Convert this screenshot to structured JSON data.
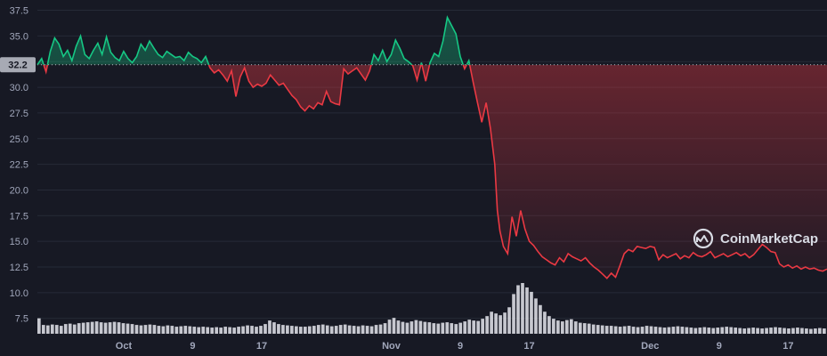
{
  "brand": {
    "name": "CoinMarketCap",
    "icon": "coinmarketcap-logo-icon"
  },
  "chart_data": {
    "type": "line",
    "title": "",
    "xlabel": "",
    "ylabel": "",
    "ylim": [
      6,
      38.5
    ],
    "yticks": [
      "7.5",
      "10.0",
      "12.5",
      "15.0",
      "17.5",
      "20.0",
      "22.5",
      "25.0",
      "27.5",
      "30.0",
      "32.5",
      "35.0",
      "37.5"
    ],
    "xticks": [
      {
        "label": "Oct",
        "day": 10
      },
      {
        "label": "9",
        "day": 18
      },
      {
        "label": "17",
        "day": 26
      },
      {
        "label": "Nov",
        "day": 41
      },
      {
        "label": "9",
        "day": 49
      },
      {
        "label": "17",
        "day": 57
      },
      {
        "label": "Dec",
        "day": 71
      },
      {
        "label": "9",
        "day": 79
      },
      {
        "label": "17",
        "day": 87
      }
    ],
    "x_range_days": [
      0,
      91.5
    ],
    "baseline": {
      "value": 32.2,
      "label": "32.2"
    },
    "colors": {
      "above": "#16c784",
      "below": "#ea3943",
      "volume": "#e6e8ef",
      "badge": "#a7aab4"
    },
    "series": [
      {
        "points": [
          [
            0,
            32.2
          ],
          [
            0.5,
            32.8
          ],
          [
            1,
            31.5
          ],
          [
            1.5,
            33.5
          ],
          [
            2,
            34.8
          ],
          [
            2.5,
            34.2
          ],
          [
            3,
            33.0
          ],
          [
            3.5,
            33.6
          ],
          [
            4,
            32.6
          ],
          [
            4.5,
            34.0
          ],
          [
            5,
            35.0
          ],
          [
            5.5,
            33.2
          ],
          [
            6,
            32.8
          ],
          [
            6.5,
            33.6
          ],
          [
            7,
            34.3
          ],
          [
            7.5,
            33.2
          ],
          [
            8,
            34.9
          ],
          [
            8.5,
            33.4
          ],
          [
            9,
            32.9
          ],
          [
            9.5,
            32.6
          ],
          [
            10,
            33.5
          ],
          [
            10.5,
            32.8
          ],
          [
            11,
            32.4
          ],
          [
            11.5,
            33.0
          ],
          [
            12,
            34.2
          ],
          [
            12.5,
            33.6
          ],
          [
            13,
            34.5
          ],
          [
            13.5,
            33.8
          ],
          [
            14,
            33.2
          ],
          [
            14.5,
            32.9
          ],
          [
            15,
            33.5
          ],
          [
            15.5,
            33.2
          ],
          [
            16,
            32.9
          ],
          [
            16.5,
            33.0
          ],
          [
            17,
            32.6
          ],
          [
            17.5,
            33.4
          ],
          [
            18,
            33.0
          ],
          [
            18.5,
            32.8
          ],
          [
            19,
            32.4
          ],
          [
            19.5,
            33.0
          ],
          [
            20,
            31.9
          ],
          [
            20.5,
            31.4
          ],
          [
            21,
            31.7
          ],
          [
            21.5,
            31.2
          ],
          [
            22,
            30.6
          ],
          [
            22.5,
            31.6
          ],
          [
            23,
            29.1
          ],
          [
            23.5,
            31.0
          ],
          [
            24,
            31.9
          ],
          [
            24.5,
            30.6
          ],
          [
            25,
            30.0
          ],
          [
            25.5,
            30.3
          ],
          [
            26,
            30.1
          ],
          [
            26.5,
            30.4
          ],
          [
            27,
            31.2
          ],
          [
            27.5,
            30.7
          ],
          [
            28,
            30.2
          ],
          [
            28.5,
            30.4
          ],
          [
            29,
            29.8
          ],
          [
            29.5,
            29.2
          ],
          [
            30,
            28.8
          ],
          [
            30.5,
            28.1
          ],
          [
            31,
            27.7
          ],
          [
            31.5,
            28.2
          ],
          [
            32,
            27.9
          ],
          [
            32.5,
            28.5
          ],
          [
            33,
            28.3
          ],
          [
            33.5,
            29.6
          ],
          [
            34,
            28.6
          ],
          [
            34.5,
            28.4
          ],
          [
            35,
            28.3
          ],
          [
            35.5,
            31.8
          ],
          [
            36,
            31.3
          ],
          [
            36.5,
            31.6
          ],
          [
            37,
            31.9
          ],
          [
            37.5,
            31.3
          ],
          [
            38,
            30.7
          ],
          [
            38.5,
            31.6
          ],
          [
            39,
            33.2
          ],
          [
            39.5,
            32.6
          ],
          [
            40,
            33.6
          ],
          [
            40.5,
            32.5
          ],
          [
            41,
            33.2
          ],
          [
            41.5,
            34.6
          ],
          [
            42,
            33.8
          ],
          [
            42.5,
            32.8
          ],
          [
            43,
            32.5
          ],
          [
            43.5,
            32.1
          ],
          [
            44,
            30.7
          ],
          [
            44.5,
            32.4
          ],
          [
            45,
            30.6
          ],
          [
            45.5,
            32.4
          ],
          [
            46,
            33.3
          ],
          [
            46.5,
            33.0
          ],
          [
            47,
            34.5
          ],
          [
            47.5,
            36.8
          ],
          [
            48,
            36.0
          ],
          [
            48.5,
            35.2
          ],
          [
            49,
            33.0
          ],
          [
            49.5,
            31.8
          ],
          [
            50,
            32.6
          ],
          [
            50.5,
            30.5
          ],
          [
            51,
            28.5
          ],
          [
            51.5,
            26.6
          ],
          [
            52,
            28.5
          ],
          [
            52.5,
            26.0
          ],
          [
            53,
            22.5
          ],
          [
            53.3,
            18.0
          ],
          [
            53.6,
            16.0
          ],
          [
            54,
            14.5
          ],
          [
            54.5,
            13.8
          ],
          [
            55,
            17.4
          ],
          [
            55.5,
            15.5
          ],
          [
            56,
            18.0
          ],
          [
            56.5,
            16.2
          ],
          [
            57,
            15.0
          ],
          [
            57.5,
            14.6
          ],
          [
            58,
            14.0
          ],
          [
            58.5,
            13.5
          ],
          [
            59,
            13.2
          ],
          [
            59.5,
            12.9
          ],
          [
            60,
            12.7
          ],
          [
            60.5,
            13.4
          ],
          [
            61,
            13.0
          ],
          [
            61.5,
            13.8
          ],
          [
            62,
            13.5
          ],
          [
            62.5,
            13.3
          ],
          [
            63,
            13.1
          ],
          [
            63.5,
            13.4
          ],
          [
            64,
            12.9
          ],
          [
            64.5,
            12.5
          ],
          [
            65,
            12.2
          ],
          [
            65.5,
            11.8
          ],
          [
            66,
            11.4
          ],
          [
            66.5,
            11.9
          ],
          [
            67,
            11.5
          ],
          [
            67.5,
            12.6
          ],
          [
            68,
            13.8
          ],
          [
            68.5,
            14.2
          ],
          [
            69,
            14.0
          ],
          [
            69.5,
            14.5
          ],
          [
            70,
            14.4
          ],
          [
            70.5,
            14.3
          ],
          [
            71,
            14.5
          ],
          [
            71.5,
            14.4
          ],
          [
            72,
            13.2
          ],
          [
            72.5,
            13.7
          ],
          [
            73,
            13.4
          ],
          [
            73.5,
            13.6
          ],
          [
            74,
            13.8
          ],
          [
            74.5,
            13.3
          ],
          [
            75,
            13.6
          ],
          [
            75.5,
            13.4
          ],
          [
            76,
            13.9
          ],
          [
            76.5,
            13.6
          ],
          [
            77,
            13.5
          ],
          [
            77.5,
            13.7
          ],
          [
            78,
            14.0
          ],
          [
            78.5,
            13.4
          ],
          [
            79,
            13.6
          ],
          [
            79.5,
            13.8
          ],
          [
            80,
            13.5
          ],
          [
            80.5,
            13.7
          ],
          [
            81,
            13.9
          ],
          [
            81.5,
            13.6
          ],
          [
            82,
            13.8
          ],
          [
            82.5,
            13.4
          ],
          [
            83,
            13.7
          ],
          [
            83.5,
            14.2
          ],
          [
            84,
            14.7
          ],
          [
            84.5,
            14.4
          ],
          [
            85,
            14.0
          ],
          [
            85.5,
            13.9
          ],
          [
            86,
            12.8
          ],
          [
            86.5,
            12.5
          ],
          [
            87,
            12.7
          ],
          [
            87.5,
            12.4
          ],
          [
            88,
            12.6
          ],
          [
            88.5,
            12.3
          ],
          [
            89,
            12.5
          ],
          [
            89.5,
            12.3
          ],
          [
            90,
            12.4
          ],
          [
            90.5,
            12.2
          ],
          [
            91,
            12.1
          ],
          [
            91.5,
            12.3
          ]
        ],
        "volume_heights": [
          3.5,
          2.0,
          1.9,
          2.1,
          2.0,
          1.8,
          2.2,
          2.3,
          2.1,
          2.4,
          2.5,
          2.6,
          2.7,
          2.8,
          2.6,
          2.5,
          2.6,
          2.7,
          2.6,
          2.4,
          2.3,
          2.2,
          2.0,
          1.9,
          2.0,
          2.1,
          2.0,
          1.8,
          1.7,
          1.9,
          1.8,
          1.6,
          1.7,
          1.8,
          1.7,
          1.6,
          1.5,
          1.6,
          1.5,
          1.4,
          1.5,
          1.4,
          1.6,
          1.5,
          1.4,
          1.6,
          1.7,
          1.9,
          1.8,
          1.6,
          1.8,
          2.2,
          3.0,
          2.6,
          2.2,
          2.0,
          1.9,
          1.8,
          1.7,
          1.6,
          1.6,
          1.7,
          1.8,
          2.0,
          2.1,
          1.9,
          1.7,
          1.8,
          2.0,
          2.1,
          1.9,
          1.8,
          1.7,
          1.9,
          1.8,
          1.7,
          2.0,
          2.1,
          2.4,
          3.2,
          3.6,
          3.0,
          2.7,
          2.5,
          2.8,
          3.1,
          2.9,
          2.7,
          2.6,
          2.4,
          2.3,
          2.5,
          2.6,
          2.4,
          2.2,
          2.5,
          2.8,
          3.2,
          3.0,
          2.9,
          3.4,
          4.0,
          5.0,
          4.6,
          4.2,
          4.8,
          6.0,
          9.0,
          11.0,
          11.5,
          10.5,
          9.5,
          8.0,
          6.5,
          5.0,
          4.0,
          3.4,
          3.0,
          2.8,
          3.1,
          3.3,
          2.8,
          2.5,
          2.4,
          2.3,
          2.1,
          2.0,
          1.9,
          1.8,
          1.8,
          1.7,
          1.6,
          1.7,
          1.8,
          1.6,
          1.5,
          1.6,
          1.8,
          1.7,
          1.6,
          1.5,
          1.4,
          1.5,
          1.6,
          1.7,
          1.6,
          1.5,
          1.4,
          1.3,
          1.4,
          1.5,
          1.4,
          1.3,
          1.4,
          1.5,
          1.6,
          1.5,
          1.4,
          1.3,
          1.2,
          1.3,
          1.4,
          1.3,
          1.2,
          1.3,
          1.4,
          1.5,
          1.4,
          1.3,
          1.2,
          1.3,
          1.4,
          1.3,
          1.2,
          1.1,
          1.2,
          1.3,
          1.2
        ]
      }
    ]
  }
}
